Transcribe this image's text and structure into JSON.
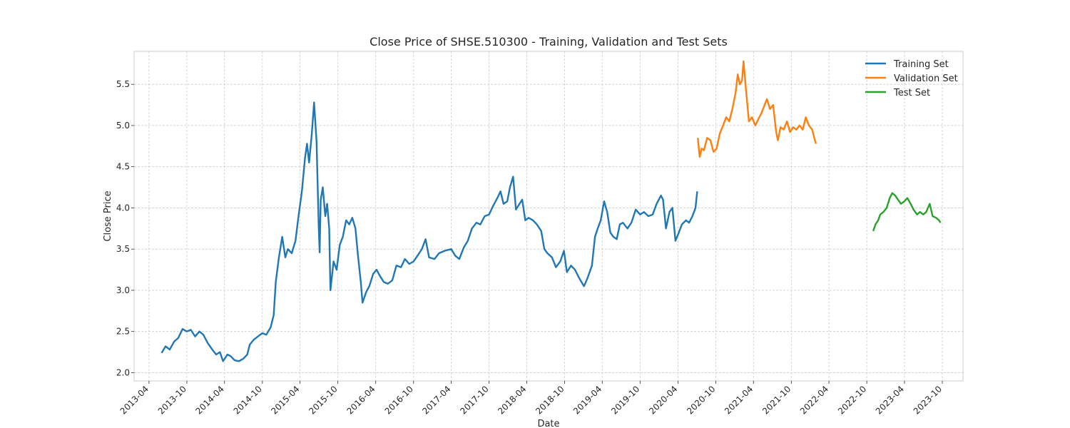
{
  "chart_data": {
    "type": "line",
    "title": "Close Price of SHSE.510300 - Training, Validation and Test Sets",
    "xlabel": "Date",
    "ylabel": "Close Price",
    "xlim": [
      "2013-01-19",
      "2024-01-09"
    ],
    "ylim": [
      1.9,
      5.9
    ],
    "x_ticks": [
      "2013-04",
      "2013-10",
      "2014-04",
      "2014-10",
      "2015-04",
      "2015-10",
      "2016-04",
      "2016-10",
      "2017-04",
      "2017-10",
      "2018-04",
      "2018-10",
      "2019-04",
      "2019-10",
      "2020-04",
      "2020-10",
      "2021-04",
      "2021-10",
      "2022-04",
      "2022-10",
      "2023-04",
      "2023-10"
    ],
    "y_ticks": [
      2.0,
      2.5,
      3.0,
      3.5,
      4.0,
      4.5,
      5.0,
      5.5
    ],
    "grid": true,
    "legend_position": "top-right",
    "series": [
      {
        "name": "Training Set",
        "color": "#1f77b4",
        "points": [
          [
            "2013-06-01",
            2.24
          ],
          [
            "2013-06-20",
            2.32
          ],
          [
            "2013-07-10",
            2.28
          ],
          [
            "2013-08-01",
            2.38
          ],
          [
            "2013-08-20",
            2.42
          ],
          [
            "2013-09-10",
            2.53
          ],
          [
            "2013-10-01",
            2.5
          ],
          [
            "2013-10-20",
            2.52
          ],
          [
            "2013-11-10",
            2.44
          ],
          [
            "2013-12-01",
            2.5
          ],
          [
            "2013-12-20",
            2.46
          ],
          [
            "2014-01-10",
            2.36
          ],
          [
            "2014-02-01",
            2.28
          ],
          [
            "2014-02-20",
            2.22
          ],
          [
            "2014-03-10",
            2.25
          ],
          [
            "2014-03-25",
            2.14
          ],
          [
            "2014-04-15",
            2.22
          ],
          [
            "2014-05-01",
            2.2
          ],
          [
            "2014-05-20",
            2.15
          ],
          [
            "2014-06-10",
            2.14
          ],
          [
            "2014-07-01",
            2.17
          ],
          [
            "2014-07-20",
            2.22
          ],
          [
            "2014-08-01",
            2.34
          ],
          [
            "2014-08-20",
            2.4
          ],
          [
            "2014-09-10",
            2.44
          ],
          [
            "2014-10-01",
            2.48
          ],
          [
            "2014-10-20",
            2.46
          ],
          [
            "2014-11-10",
            2.55
          ],
          [
            "2014-11-25",
            2.7
          ],
          [
            "2014-12-05",
            3.1
          ],
          [
            "2014-12-20",
            3.4
          ],
          [
            "2015-01-05",
            3.65
          ],
          [
            "2015-01-20",
            3.4
          ],
          [
            "2015-02-01",
            3.5
          ],
          [
            "2015-02-20",
            3.45
          ],
          [
            "2015-03-10",
            3.6
          ],
          [
            "2015-03-25",
            3.9
          ],
          [
            "2015-04-10",
            4.2
          ],
          [
            "2015-04-25",
            4.6
          ],
          [
            "2015-05-05",
            4.78
          ],
          [
            "2015-05-15",
            4.55
          ],
          [
            "2015-05-28",
            4.9
          ],
          [
            "2015-06-08",
            5.28
          ],
          [
            "2015-06-20",
            4.8
          ],
          [
            "2015-06-30",
            3.8
          ],
          [
            "2015-07-05",
            3.46
          ],
          [
            "2015-07-10",
            4.1
          ],
          [
            "2015-07-20",
            4.25
          ],
          [
            "2015-08-01",
            3.9
          ],
          [
            "2015-08-10",
            4.05
          ],
          [
            "2015-08-20",
            3.75
          ],
          [
            "2015-08-26",
            3.0
          ],
          [
            "2015-09-10",
            3.35
          ],
          [
            "2015-09-25",
            3.25
          ],
          [
            "2015-10-10",
            3.55
          ],
          [
            "2015-10-25",
            3.65
          ],
          [
            "2015-11-10",
            3.85
          ],
          [
            "2015-11-25",
            3.8
          ],
          [
            "2015-12-10",
            3.88
          ],
          [
            "2015-12-25",
            3.75
          ],
          [
            "2016-01-05",
            3.45
          ],
          [
            "2016-01-20",
            3.1
          ],
          [
            "2016-01-28",
            2.85
          ],
          [
            "2016-02-15",
            2.98
          ],
          [
            "2016-03-01",
            3.05
          ],
          [
            "2016-03-20",
            3.2
          ],
          [
            "2016-04-05",
            3.25
          ],
          [
            "2016-04-20",
            3.18
          ],
          [
            "2016-05-10",
            3.1
          ],
          [
            "2016-05-30",
            3.08
          ],
          [
            "2016-06-20",
            3.12
          ],
          [
            "2016-07-10",
            3.3
          ],
          [
            "2016-08-01",
            3.28
          ],
          [
            "2016-08-20",
            3.38
          ],
          [
            "2016-09-10",
            3.32
          ],
          [
            "2016-10-01",
            3.35
          ],
          [
            "2016-10-20",
            3.42
          ],
          [
            "2016-11-10",
            3.5
          ],
          [
            "2016-11-28",
            3.62
          ],
          [
            "2016-12-15",
            3.4
          ],
          [
            "2017-01-10",
            3.38
          ],
          [
            "2017-02-01",
            3.45
          ],
          [
            "2017-03-01",
            3.48
          ],
          [
            "2017-04-01",
            3.5
          ],
          [
            "2017-04-20",
            3.42
          ],
          [
            "2017-05-10",
            3.38
          ],
          [
            "2017-06-01",
            3.52
          ],
          [
            "2017-06-20",
            3.6
          ],
          [
            "2017-07-10",
            3.75
          ],
          [
            "2017-08-01",
            3.82
          ],
          [
            "2017-08-20",
            3.8
          ],
          [
            "2017-09-10",
            3.9
          ],
          [
            "2017-10-01",
            3.92
          ],
          [
            "2017-10-20",
            4.02
          ],
          [
            "2017-11-10",
            4.12
          ],
          [
            "2017-11-25",
            4.2
          ],
          [
            "2017-12-10",
            4.05
          ],
          [
            "2017-12-28",
            4.08
          ],
          [
            "2018-01-10",
            4.25
          ],
          [
            "2018-01-25",
            4.38
          ],
          [
            "2018-02-08",
            3.98
          ],
          [
            "2018-02-25",
            4.05
          ],
          [
            "2018-03-10",
            4.1
          ],
          [
            "2018-03-25",
            3.85
          ],
          [
            "2018-04-10",
            3.88
          ],
          [
            "2018-05-01",
            3.85
          ],
          [
            "2018-05-20",
            3.8
          ],
          [
            "2018-06-10",
            3.72
          ],
          [
            "2018-06-25",
            3.5
          ],
          [
            "2018-07-10",
            3.45
          ],
          [
            "2018-08-01",
            3.4
          ],
          [
            "2018-08-20",
            3.28
          ],
          [
            "2018-09-10",
            3.35
          ],
          [
            "2018-09-28",
            3.48
          ],
          [
            "2018-10-12",
            3.22
          ],
          [
            "2018-11-01",
            3.3
          ],
          [
            "2018-11-20",
            3.25
          ],
          [
            "2018-12-10",
            3.15
          ],
          [
            "2019-01-03",
            3.05
          ],
          [
            "2019-01-20",
            3.15
          ],
          [
            "2019-02-10",
            3.3
          ],
          [
            "2019-02-25",
            3.65
          ],
          [
            "2019-03-10",
            3.75
          ],
          [
            "2019-03-25",
            3.85
          ],
          [
            "2019-04-10",
            4.08
          ],
          [
            "2019-04-25",
            3.95
          ],
          [
            "2019-05-10",
            3.7
          ],
          [
            "2019-05-25",
            3.65
          ],
          [
            "2019-06-10",
            3.62
          ],
          [
            "2019-06-25",
            3.8
          ],
          [
            "2019-07-10",
            3.82
          ],
          [
            "2019-08-01",
            3.75
          ],
          [
            "2019-08-20",
            3.82
          ],
          [
            "2019-09-10",
            3.98
          ],
          [
            "2019-10-01",
            3.92
          ],
          [
            "2019-10-20",
            3.95
          ],
          [
            "2019-11-10",
            3.9
          ],
          [
            "2019-12-01",
            3.92
          ],
          [
            "2019-12-20",
            4.05
          ],
          [
            "2020-01-10",
            4.15
          ],
          [
            "2020-01-20",
            4.1
          ],
          [
            "2020-02-03",
            3.75
          ],
          [
            "2020-02-20",
            3.95
          ],
          [
            "2020-03-05",
            4.0
          ],
          [
            "2020-03-20",
            3.6
          ],
          [
            "2020-04-05",
            3.7
          ],
          [
            "2020-04-20",
            3.8
          ],
          [
            "2020-05-10",
            3.85
          ],
          [
            "2020-05-25",
            3.82
          ],
          [
            "2020-06-10",
            3.9
          ],
          [
            "2020-06-25",
            4.0
          ],
          [
            "2020-07-03",
            4.2
          ]
        ]
      },
      {
        "name": "Validation Set",
        "color": "#ff7f0e",
        "points": [
          [
            "2020-07-06",
            4.85
          ],
          [
            "2020-07-15",
            4.62
          ],
          [
            "2020-07-25",
            4.72
          ],
          [
            "2020-08-05",
            4.7
          ],
          [
            "2020-08-20",
            4.85
          ],
          [
            "2020-09-05",
            4.82
          ],
          [
            "2020-09-20",
            4.68
          ],
          [
            "2020-10-05",
            4.72
          ],
          [
            "2020-10-20",
            4.9
          ],
          [
            "2020-11-05",
            5.0
          ],
          [
            "2020-11-20",
            5.1
          ],
          [
            "2020-12-05",
            5.05
          ],
          [
            "2020-12-20",
            5.2
          ],
          [
            "2021-01-05",
            5.4
          ],
          [
            "2021-01-15",
            5.62
          ],
          [
            "2021-01-25",
            5.5
          ],
          [
            "2021-02-05",
            5.55
          ],
          [
            "2021-02-12",
            5.78
          ],
          [
            "2021-02-25",
            5.4
          ],
          [
            "2021-03-10",
            5.05
          ],
          [
            "2021-03-25",
            5.1
          ],
          [
            "2021-04-10",
            5.0
          ],
          [
            "2021-04-25",
            5.08
          ],
          [
            "2021-05-10",
            5.15
          ],
          [
            "2021-05-25",
            5.25
          ],
          [
            "2021-06-05",
            5.32
          ],
          [
            "2021-06-20",
            5.2
          ],
          [
            "2021-07-05",
            5.25
          ],
          [
            "2021-07-20",
            4.92
          ],
          [
            "2021-07-28",
            4.82
          ],
          [
            "2021-08-10",
            4.98
          ],
          [
            "2021-08-25",
            4.95
          ],
          [
            "2021-09-10",
            5.05
          ],
          [
            "2021-09-25",
            4.92
          ],
          [
            "2021-10-10",
            4.98
          ],
          [
            "2021-10-25",
            4.95
          ],
          [
            "2021-11-10",
            5.0
          ],
          [
            "2021-11-25",
            4.95
          ],
          [
            "2021-12-10",
            5.1
          ],
          [
            "2021-12-25",
            5.0
          ],
          [
            "2022-01-10",
            4.95
          ],
          [
            "2022-01-20",
            4.85
          ],
          [
            "2022-01-28",
            4.78
          ]
        ]
      },
      {
        "name": "Test Set",
        "color": "#2ca02c",
        "points": [
          [
            "2022-11-01",
            3.72
          ],
          [
            "2022-11-12",
            3.8
          ],
          [
            "2022-11-25",
            3.85
          ],
          [
            "2022-12-05",
            3.92
          ],
          [
            "2022-12-20",
            3.95
          ],
          [
            "2023-01-05",
            4.0
          ],
          [
            "2023-01-20",
            4.12
          ],
          [
            "2023-02-01",
            4.18
          ],
          [
            "2023-02-15",
            4.15
          ],
          [
            "2023-03-01",
            4.1
          ],
          [
            "2023-03-15",
            4.05
          ],
          [
            "2023-04-01",
            4.08
          ],
          [
            "2023-04-15",
            4.12
          ],
          [
            "2023-05-01",
            4.05
          ],
          [
            "2023-05-15",
            3.98
          ],
          [
            "2023-06-01",
            3.92
          ],
          [
            "2023-06-15",
            3.95
          ],
          [
            "2023-07-01",
            3.92
          ],
          [
            "2023-07-15",
            3.95
          ],
          [
            "2023-08-01",
            4.05
          ],
          [
            "2023-08-15",
            3.9
          ],
          [
            "2023-09-01",
            3.88
          ],
          [
            "2023-09-15",
            3.85
          ],
          [
            "2023-09-22",
            3.82
          ]
        ]
      }
    ]
  }
}
